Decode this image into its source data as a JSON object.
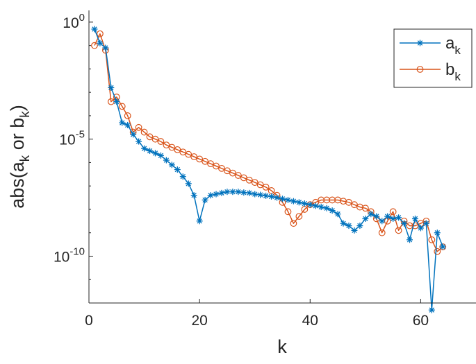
{
  "chart_data": {
    "type": "line",
    "xlabel": "k",
    "ylabel": {
      "base": "abs(a",
      "sub1": "k",
      "mid": " or b",
      "sub2": "k",
      "end": ")"
    },
    "xlim": [
      0,
      70
    ],
    "ylim_log10": [
      -12,
      0.5
    ],
    "yscale": "log",
    "xticks": [
      0,
      20,
      40,
      60
    ],
    "yticks": [
      {
        "exp": 0,
        "base": "10",
        "sup": "0"
      },
      {
        "exp": -5,
        "base": "10",
        "sup": "-5"
      },
      {
        "exp": -10,
        "base": "10",
        "sup": "-10"
      }
    ],
    "minor_yticks": [
      -1,
      -2,
      -3,
      -4,
      -6,
      -7,
      -8,
      -9,
      -11
    ],
    "grid": false,
    "legend_position": "top-right",
    "series": [
      {
        "name": "a_k",
        "label_base": "a",
        "label_sub": "k",
        "color": "#0072BD",
        "marker": "asterisk",
        "x": [
          1,
          2,
          3,
          4,
          5,
          6,
          7,
          8,
          9,
          10,
          11,
          12,
          13,
          14,
          15,
          16,
          17,
          18,
          19,
          20,
          21,
          22,
          23,
          24,
          25,
          26,
          27,
          28,
          29,
          30,
          31,
          32,
          33,
          34,
          35,
          36,
          37,
          38,
          39,
          40,
          41,
          42,
          43,
          44,
          45,
          46,
          47,
          48,
          49,
          50,
          51,
          52,
          53,
          54,
          55,
          56,
          57,
          58,
          59,
          60,
          61,
          62,
          63,
          64
        ],
        "log10_y": [
          -0.3,
          -0.9,
          -1.1,
          -2.8,
          -3.4,
          -4.3,
          -4.4,
          -4.8,
          -5.1,
          -5.4,
          -5.5,
          -5.6,
          -5.7,
          -5.9,
          -6.1,
          -6.3,
          -6.6,
          -6.9,
          -7.4,
          -8.5,
          -7.6,
          -7.4,
          -7.35,
          -7.3,
          -7.25,
          -7.25,
          -7.25,
          -7.28,
          -7.3,
          -7.35,
          -7.38,
          -7.42,
          -7.45,
          -7.5,
          -7.55,
          -7.6,
          -7.65,
          -7.7,
          -7.75,
          -7.8,
          -7.85,
          -7.9,
          -7.95,
          -8.05,
          -8.2,
          -8.6,
          -8.7,
          -8.9,
          -8.7,
          -8.4,
          -8.2,
          -8.3,
          -8.5,
          -8.3,
          -8.4,
          -8.35,
          -8.6,
          -9.3,
          -8.4,
          -8.8,
          -8.6,
          -12.3,
          -9.0,
          -9.6
        ]
      },
      {
        "name": "b_k",
        "label_base": "b",
        "label_sub": "k",
        "color": "#D95319",
        "marker": "circle",
        "x": [
          1,
          2,
          3,
          4,
          5,
          6,
          7,
          8,
          9,
          10,
          11,
          12,
          13,
          14,
          15,
          16,
          17,
          18,
          19,
          20,
          21,
          22,
          23,
          24,
          25,
          26,
          27,
          28,
          29,
          30,
          31,
          32,
          33,
          34,
          35,
          36,
          37,
          38,
          39,
          40,
          41,
          42,
          43,
          44,
          45,
          46,
          47,
          48,
          49,
          50,
          51,
          52,
          53,
          54,
          55,
          56,
          57,
          58,
          59,
          60,
          61,
          62,
          63,
          64
        ],
        "log10_y": [
          -1.0,
          -0.5,
          -1.2,
          -3.4,
          -3.2,
          -3.6,
          -4.0,
          -4.7,
          -4.5,
          -4.7,
          -4.9,
          -5.0,
          -5.1,
          -5.25,
          -5.35,
          -5.45,
          -5.55,
          -5.65,
          -5.75,
          -5.85,
          -5.95,
          -6.05,
          -6.15,
          -6.25,
          -6.35,
          -6.45,
          -6.55,
          -6.65,
          -6.75,
          -6.85,
          -6.95,
          -7.05,
          -7.2,
          -7.4,
          -7.7,
          -8.1,
          -8.6,
          -8.3,
          -8.0,
          -7.8,
          -7.7,
          -7.6,
          -7.6,
          -7.6,
          -7.6,
          -7.65,
          -7.7,
          -7.8,
          -7.9,
          -7.95,
          -8.1,
          -8.4,
          -9.0,
          -8.5,
          -8.1,
          -8.9,
          -8.5,
          -8.7,
          -8.7,
          -8.6,
          -8.5,
          -9.3,
          -9.8,
          -9.6
        ]
      }
    ]
  }
}
